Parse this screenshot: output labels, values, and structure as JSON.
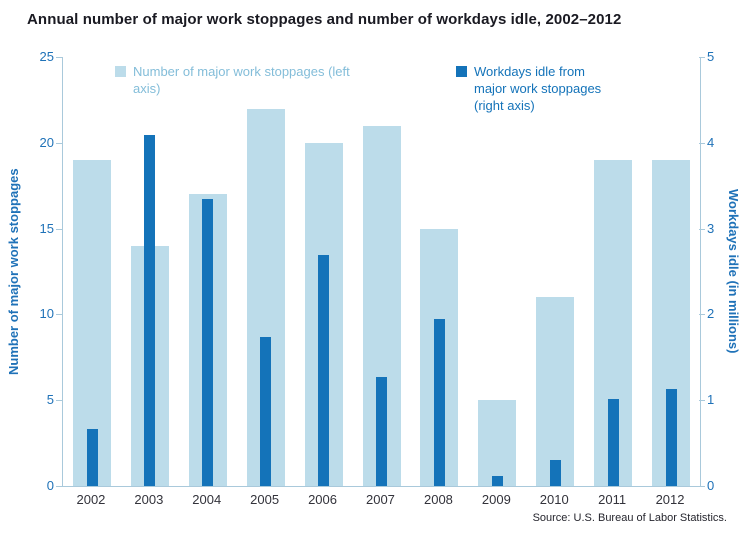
{
  "title": "Annual number of major work stoppages and number of workdays idle, 2002–2012",
  "source": "Source: U.S. Bureau of Labor Statistics.",
  "legend": {
    "stoppages": "Number of major work stoppages (left axis)",
    "idle": "Workdays idle from major work stoppages (right axis)"
  },
  "chart_data": {
    "type": "bar",
    "title": "Annual number of major work stoppages and number of workdays idle, 2002–2012",
    "categories": [
      "2002",
      "2003",
      "2004",
      "2005",
      "2006",
      "2007",
      "2008",
      "2009",
      "2010",
      "2011",
      "2012"
    ],
    "series": [
      {
        "name": "Number of major work stoppages",
        "axis": "left",
        "color": "#bcdcea",
        "values": [
          19,
          14,
          17,
          22,
          20,
          21,
          15,
          5,
          11,
          19,
          19
        ]
      },
      {
        "name": "Workdays idle from major work stoppages",
        "axis": "right",
        "color": "#1473b9",
        "values": [
          0.66,
          4.09,
          3.34,
          1.74,
          2.69,
          1.27,
          1.95,
          0.12,
          0.3,
          1.02,
          1.13
        ]
      }
    ],
    "left_axis": {
      "label": "Number of major work stoppages",
      "min": 0,
      "max": 25,
      "ticks": [
        0,
        5,
        10,
        15,
        20,
        25
      ]
    },
    "right_axis": {
      "label": "Workdays idle (in millions)",
      "min": 0,
      "max": 5,
      "ticks": [
        0,
        1,
        2,
        3,
        4,
        5
      ]
    },
    "grid": false,
    "legend_position": "top-inside"
  }
}
